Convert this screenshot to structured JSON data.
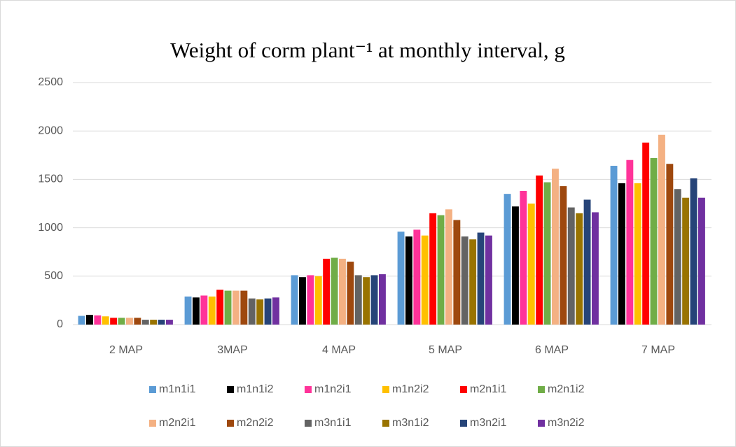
{
  "chart_data": {
    "type": "bar",
    "title": "Weight of corm  plant⁻¹ at monthly interval, g",
    "categories": [
      "2 MAP",
      "3MAP",
      "4 MAP",
      "5 MAP",
      "6 MAP",
      "7 MAP"
    ],
    "series": [
      {
        "name": "m1n1i1",
        "color": "#5b9bd5",
        "values": [
          90,
          290,
          510,
          960,
          1350,
          1640
        ]
      },
      {
        "name": "m1n1i2",
        "color": "#000000",
        "values": [
          100,
          280,
          490,
          910,
          1220,
          1460
        ]
      },
      {
        "name": "m1n2i1",
        "color": "#ff3399",
        "values": [
          95,
          300,
          510,
          980,
          1380,
          1700
        ]
      },
      {
        "name": "m1n2i2",
        "color": "#ffc000",
        "values": [
          85,
          290,
          500,
          920,
          1250,
          1460
        ]
      },
      {
        "name": "m2n1i1",
        "color": "#ff0000",
        "values": [
          70,
          360,
          680,
          1150,
          1540,
          1880
        ]
      },
      {
        "name": "m2n1i2",
        "color": "#70ad47",
        "values": [
          70,
          350,
          690,
          1130,
          1470,
          1720
        ]
      },
      {
        "name": "m2n2i1",
        "color": "#f4b183",
        "values": [
          70,
          350,
          680,
          1190,
          1610,
          1960
        ]
      },
      {
        "name": "m2n2i2",
        "color": "#9e480e",
        "values": [
          70,
          350,
          650,
          1080,
          1430,
          1660
        ]
      },
      {
        "name": "m3n1i1",
        "color": "#636363",
        "values": [
          50,
          270,
          510,
          910,
          1210,
          1400
        ]
      },
      {
        "name": "m3n1i2",
        "color": "#997300",
        "values": [
          50,
          260,
          490,
          880,
          1150,
          1310
        ]
      },
      {
        "name": "m3n2i1",
        "color": "#264478",
        "values": [
          50,
          270,
          510,
          950,
          1290,
          1510
        ]
      },
      {
        "name": "m3n2i2",
        "color": "#7030a0",
        "values": [
          50,
          280,
          520,
          920,
          1160,
          1310
        ]
      }
    ],
    "ylim": [
      0,
      2500
    ],
    "yticks": [
      0,
      500,
      1000,
      1500,
      2000,
      2500
    ],
    "grid": true
  }
}
